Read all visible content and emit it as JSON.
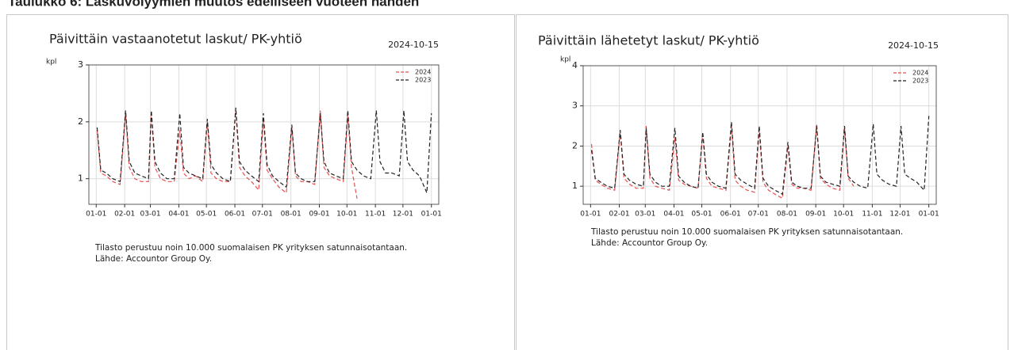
{
  "page_title": "Taulukko 6: Laskuvolyymien muutos edelliseen vuoteen nähden",
  "chart_data": [
    {
      "type": "line",
      "title": "Päivittäin vastaanotetut laskut/ PK-yhtiö",
      "date": "2024-10-15",
      "ylabel": "kpl",
      "notes": [
        "Tilasto perustuu noin 10.000 suomalaisen PK yrityksen satunnaisotantaan.",
        "Lähde: Accountor Group Oy."
      ],
      "x": [
        1,
        5,
        11,
        18,
        26,
        32,
        36,
        42,
        49,
        57,
        60,
        64,
        70,
        77,
        85,
        91,
        95,
        101,
        108,
        116,
        121,
        125,
        131,
        138,
        146,
        152,
        156,
        162,
        169,
        177,
        182,
        186,
        192,
        199,
        207,
        213,
        217,
        223,
        230,
        238,
        244,
        248,
        254,
        261,
        269,
        274,
        278,
        284,
        291,
        299,
        305,
        309,
        315,
        322,
        330,
        335,
        339,
        345,
        352,
        360,
        365
      ],
      "series": [
        {
          "name": "2024",
          "color": "#e8504f",
          "values": [
            1.85,
            1.1,
            1.05,
            0.95,
            0.9,
            2.15,
            1.2,
            1.0,
            0.95,
            0.95,
            2.15,
            1.2,
            1.0,
            0.95,
            0.95,
            1.85,
            1.1,
            1.0,
            1.05,
            0.95,
            2.0,
            1.1,
            1.0,
            0.95,
            0.95,
            2.2,
            1.2,
            1.05,
            0.95,
            0.8,
            2.05,
            1.15,
            1.0,
            0.85,
            0.75,
            1.9,
            1.05,
            0.95,
            0.95,
            0.9,
            2.2,
            1.2,
            1.05,
            1.0,
            0.95,
            2.1,
            1.2,
            0.65,
            null,
            null,
            null,
            null,
            null,
            null,
            null,
            null,
            null,
            null,
            null,
            null,
            null
          ]
        },
        {
          "name": "2023",
          "color": "#222222",
          "values": [
            1.9,
            1.15,
            1.1,
            1.0,
            0.95,
            2.2,
            1.3,
            1.1,
            1.05,
            1.0,
            2.2,
            1.3,
            1.1,
            1.0,
            1.0,
            2.15,
            1.2,
            1.1,
            1.05,
            1.0,
            2.05,
            1.25,
            1.1,
            1.0,
            0.95,
            2.25,
            1.3,
            1.15,
            1.05,
            0.95,
            2.15,
            1.25,
            1.05,
            0.95,
            0.85,
            1.95,
            1.1,
            1.0,
            0.95,
            0.95,
            2.15,
            1.3,
            1.1,
            1.05,
            1.0,
            2.2,
            1.3,
            1.15,
            1.05,
            1.0,
            2.2,
            1.3,
            1.1,
            1.1,
            1.05,
            2.2,
            1.3,
            1.15,
            1.05,
            0.75,
            2.15
          ]
        }
      ],
      "xlim": [
        -8,
        373
      ],
      "xticks": [
        {
          "value": 0,
          "label": "01-01"
        },
        {
          "value": 31,
          "label": "02-01"
        },
        {
          "value": 59,
          "label": "03-01"
        },
        {
          "value": 90,
          "label": "04-01"
        },
        {
          "value": 120,
          "label": "05-01"
        },
        {
          "value": 151,
          "label": "06-01"
        },
        {
          "value": 181,
          "label": "07-01"
        },
        {
          "value": 212,
          "label": "08-01"
        },
        {
          "value": 243,
          "label": "09-01"
        },
        {
          "value": 273,
          "label": "10-01"
        },
        {
          "value": 304,
          "label": "11-01"
        },
        {
          "value": 334,
          "label": "12-01"
        },
        {
          "value": 365,
          "label": "01-01"
        }
      ],
      "ylim": [
        0.55,
        3
      ],
      "yticks": [
        1,
        2,
        3
      ],
      "grid": true,
      "legend": "upper right"
    },
    {
      "type": "line",
      "title": "Päivittäin lähetetyt laskut/ PK-yhtiö",
      "date": "2024-10-15",
      "ylabel": "kpl",
      "notes": [
        "Tilasto perustuu noin 10.000 suomalaisen PK yrityksen satunnaisotantaan.",
        "Lähde: Accountor Group Oy."
      ],
      "x": [
        1,
        5,
        11,
        18,
        26,
        32,
        36,
        42,
        49,
        57,
        60,
        64,
        70,
        77,
        85,
        91,
        95,
        101,
        108,
        116,
        121,
        125,
        131,
        138,
        146,
        152,
        156,
        162,
        169,
        177,
        182,
        186,
        192,
        199,
        207,
        213,
        217,
        223,
        230,
        238,
        244,
        248,
        254,
        261,
        269,
        274,
        278,
        284,
        291,
        299,
        305,
        309,
        315,
        322,
        330,
        335,
        339,
        345,
        352,
        360,
        365
      ],
      "series": [
        {
          "name": "2024",
          "color": "#e8504f",
          "values": [
            2.05,
            1.15,
            1.05,
            0.95,
            0.9,
            2.35,
            1.2,
            1.05,
            0.95,
            0.95,
            2.5,
            1.2,
            1.0,
            0.95,
            0.9,
            2.2,
            1.15,
            1.05,
            1.0,
            0.95,
            2.3,
            1.2,
            1.0,
            0.95,
            0.9,
            2.5,
            1.15,
            1.0,
            0.9,
            0.85,
            2.4,
            1.1,
            0.9,
            0.8,
            0.7,
            2.0,
            1.05,
            0.95,
            0.95,
            0.9,
            2.55,
            1.2,
            1.05,
            0.95,
            0.9,
            2.45,
            1.2,
            1.0,
            null,
            null,
            null,
            null,
            null,
            null,
            null,
            null,
            null,
            null,
            null,
            null,
            null
          ]
        },
        {
          "name": "2023",
          "color": "#222222",
          "values": [
            1.9,
            1.2,
            1.1,
            1.0,
            0.95,
            2.4,
            1.3,
            1.15,
            1.05,
            1.0,
            2.45,
            1.3,
            1.1,
            1.0,
            1.0,
            2.45,
            1.25,
            1.1,
            1.0,
            0.95,
            2.35,
            1.3,
            1.1,
            1.0,
            0.95,
            2.6,
            1.3,
            1.15,
            1.05,
            0.95,
            2.5,
            1.2,
            1.0,
            0.9,
            0.8,
            2.1,
            1.1,
            1.0,
            0.95,
            0.95,
            2.5,
            1.25,
            1.1,
            1.05,
            1.0,
            2.5,
            1.25,
            1.1,
            1.0,
            0.95,
            2.55,
            1.3,
            1.15,
            1.05,
            1.0,
            2.5,
            1.3,
            1.2,
            1.1,
            0.9,
            2.75
          ]
        }
      ],
      "xlim": [
        -8,
        373
      ],
      "xticks": [
        {
          "value": 0,
          "label": "01-01"
        },
        {
          "value": 31,
          "label": "02-01"
        },
        {
          "value": 59,
          "label": "03-01"
        },
        {
          "value": 90,
          "label": "04-01"
        },
        {
          "value": 120,
          "label": "05-01"
        },
        {
          "value": 151,
          "label": "06-01"
        },
        {
          "value": 181,
          "label": "07-01"
        },
        {
          "value": 212,
          "label": "08-01"
        },
        {
          "value": 243,
          "label": "09-01"
        },
        {
          "value": 273,
          "label": "10-01"
        },
        {
          "value": 304,
          "label": "11-01"
        },
        {
          "value": 334,
          "label": "12-01"
        },
        {
          "value": 365,
          "label": "01-01"
        }
      ],
      "ylim": [
        0.55,
        4
      ],
      "yticks": [
        1,
        2,
        3,
        4
      ],
      "grid": true,
      "legend": "upper right"
    }
  ]
}
